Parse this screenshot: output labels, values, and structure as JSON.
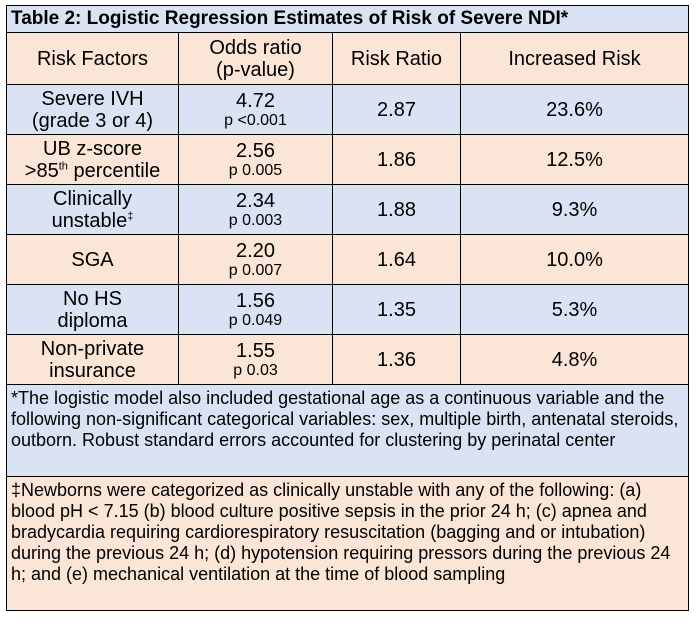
{
  "title": "Table 2: Logistic Regression Estimates of Risk of Severe NDI*",
  "headers": {
    "risk_factors": "Risk Factors",
    "odds_line1": "Odds ratio",
    "odds_line2": "(p-value)",
    "risk_ratio": "Risk Ratio",
    "increased_risk": "Increased Risk"
  },
  "rows": [
    {
      "f1": "Severe IVH",
      "f2": "(grade 3 or 4)",
      "odds": "4.72",
      "p": "p <0.001",
      "rr": "2.87",
      "ir": "23.6%"
    },
    {
      "f1": "UB z-score",
      "f2": ">85",
      "f2_sup": "th",
      "f2_tail": " percentile",
      "odds": "2.56",
      "p": "p 0.005",
      "rr": "1.86",
      "ir": "12.5%"
    },
    {
      "f1": "Clinically",
      "f2": "unstable",
      "f2_sup": "‡",
      "odds": "2.34",
      "p": "p 0.003",
      "rr": "1.88",
      "ir": "9.3%"
    },
    {
      "f1": "SGA",
      "odds": "2.20",
      "p": "p 0.007",
      "rr": "1.64",
      "ir": "10.0%"
    },
    {
      "f1": "No HS",
      "f2": "diploma",
      "odds": "1.56",
      "p": "p 0.049",
      "rr": "1.35",
      "ir": "5.3%"
    },
    {
      "f1": "Non-private",
      "f2": "insurance",
      "odds": "1.55",
      "p": "p 0.03",
      "rr": "1.36",
      "ir": "4.8%"
    }
  ],
  "note1": "*The logistic model also included gestational age as a continuous variable and the following non-significant categorical variables: sex, multiple birth, antenatal steroids, outborn. Robust standard errors accounted for clustering by perinatal center",
  "note2": "‡Newborns were categorized as clinically unstable with any of the following: (a) blood pH < 7.15 (b) blood culture positive sepsis in the prior 24 h; (c) apnea and bradycardia requiring cardiorespiratory resuscitation (bagging and or intubation) during the previous 24 h; (d) hypotension requiring pressors during the previous 24 h; and (e) mechanical ventilation at the time of blood sampling",
  "colors": {
    "blue": "#dae3f3",
    "peach": "#fbe5d6"
  }
}
